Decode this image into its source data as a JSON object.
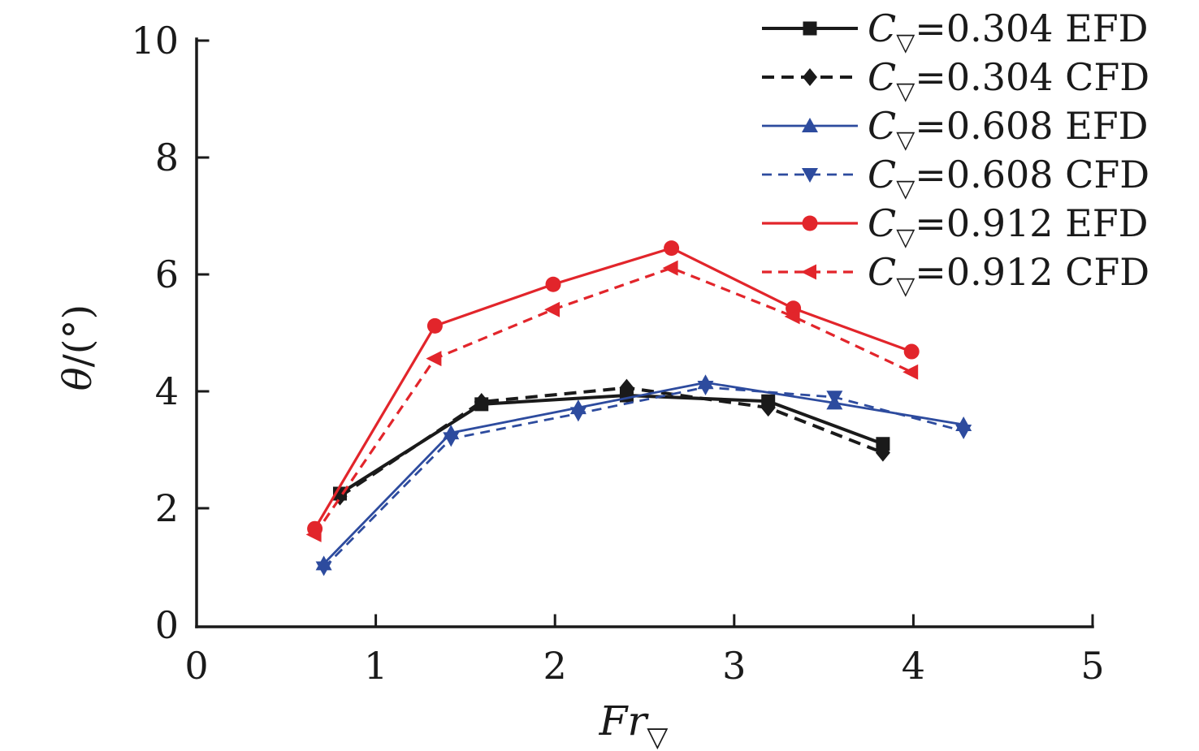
{
  "figure_title": "",
  "nabla_glyph": "▽",
  "chart_data": {
    "type": "line",
    "title": "",
    "xlabel": "Fr_∇",
    "ylabel": "θ/(°)",
    "xlim": [
      0,
      5
    ],
    "ylim": [
      0,
      10
    ],
    "x_ticks": [
      "0",
      "1",
      "2",
      "3",
      "4",
      "5"
    ],
    "y_ticks": [
      "0",
      "2",
      "4",
      "6",
      "8",
      "10"
    ],
    "grid": false,
    "legend_position": "top-right",
    "axis_color": "#1a1a1a",
    "series": [
      {
        "name": "C∇=0.304 EFD",
        "legend": {
          "pre": "C",
          "rest": "=0.304 EFD"
        },
        "color": "#1a1a1a",
        "line_style": "solid",
        "marker": "square",
        "points": [
          [
            0.8,
            2.25
          ],
          [
            1.59,
            3.78
          ],
          [
            2.4,
            3.93
          ],
          [
            3.19,
            3.83
          ],
          [
            3.83,
            3.1
          ]
        ]
      },
      {
        "name": "C∇=0.304 CFD",
        "legend": {
          "pre": "C",
          "rest": "=0.304 CFD"
        },
        "color": "#1a1a1a",
        "line_style": "dashed",
        "marker": "diamond",
        "points": [
          [
            0.8,
            2.2
          ],
          [
            1.59,
            3.82
          ],
          [
            2.4,
            4.06
          ],
          [
            3.19,
            3.72
          ],
          [
            3.83,
            2.95
          ]
        ]
      },
      {
        "name": "C∇=0.608 EFD",
        "legend": {
          "pre": "C",
          "rest": "=0.608 EFD"
        },
        "color": "#2d4b9e",
        "line_style": "solid",
        "marker": "triangle-up",
        "points": [
          [
            0.71,
            1.05
          ],
          [
            1.42,
            3.29
          ],
          [
            2.13,
            3.72
          ],
          [
            2.84,
            4.15
          ],
          [
            3.56,
            3.8
          ],
          [
            4.28,
            3.43
          ]
        ]
      },
      {
        "name": "C∇=0.608 CFD",
        "legend": {
          "pre": "C",
          "rest": "=0.608 CFD"
        },
        "color": "#2d4b9e",
        "line_style": "dashed",
        "marker": "triangle-down",
        "points": [
          [
            0.71,
            0.98
          ],
          [
            1.42,
            3.19
          ],
          [
            2.13,
            3.62
          ],
          [
            2.84,
            4.07
          ],
          [
            3.56,
            3.9
          ],
          [
            4.28,
            3.32
          ]
        ]
      },
      {
        "name": "C∇=0.912 EFD",
        "legend": {
          "pre": "C",
          "rest": "=0.912 EFD"
        },
        "color": "#e2252b",
        "line_style": "solid",
        "marker": "circle",
        "points": [
          [
            0.66,
            1.65
          ],
          [
            1.33,
            5.12
          ],
          [
            1.99,
            5.83
          ],
          [
            2.65,
            6.45
          ],
          [
            3.33,
            5.42
          ],
          [
            3.99,
            4.68
          ]
        ]
      },
      {
        "name": "C∇=0.912 CFD",
        "legend": {
          "pre": "C",
          "rest": "=0.912 CFD"
        },
        "color": "#e2252b",
        "line_style": "dashed",
        "marker": "triangle-left",
        "points": [
          [
            0.66,
            1.55
          ],
          [
            1.33,
            4.56
          ],
          [
            1.99,
            5.4
          ],
          [
            2.65,
            6.11
          ],
          [
            3.33,
            5.28
          ],
          [
            3.99,
            4.33
          ]
        ]
      }
    ]
  }
}
